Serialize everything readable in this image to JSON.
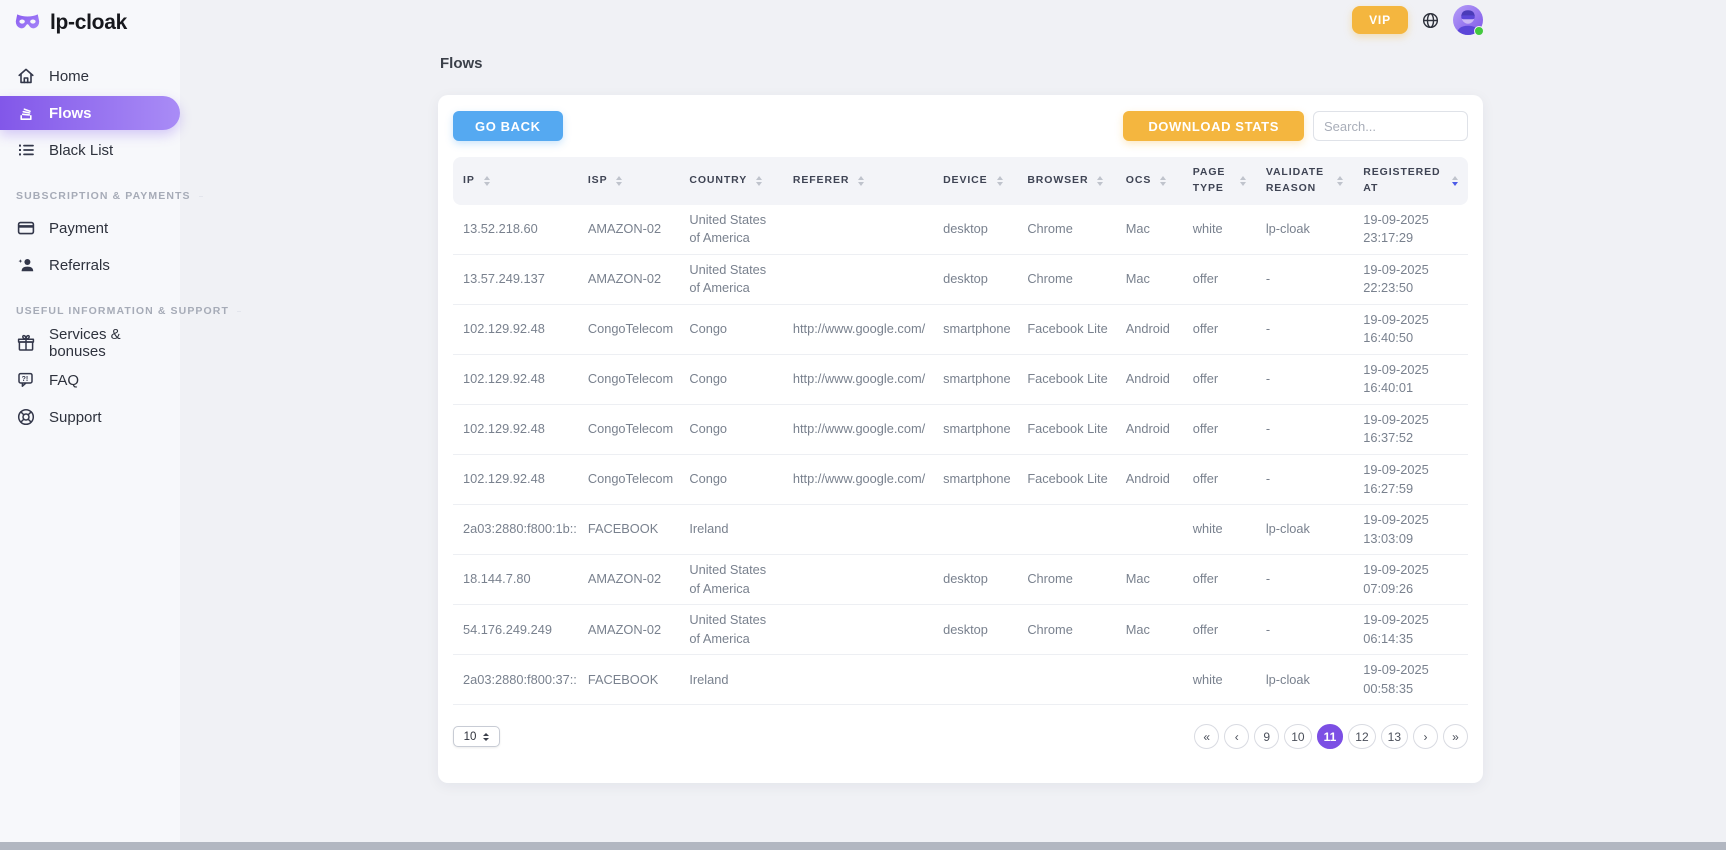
{
  "brand": {
    "name": "lp-cloak"
  },
  "topbar": {
    "vip_label": "VIP"
  },
  "sidebar": {
    "sections": [
      {
        "header": "",
        "items": [
          {
            "label": "Home",
            "icon": "home-icon",
            "active": false
          },
          {
            "label": "Flows",
            "icon": "flows-stack-icon",
            "active": true
          },
          {
            "label": "Black List",
            "icon": "list-icon",
            "active": false
          }
        ]
      },
      {
        "header": "SUBSCRIPTION & PAYMENTS",
        "items": [
          {
            "label": "Payment",
            "icon": "credit-card-icon",
            "active": false
          },
          {
            "label": "Referrals",
            "icon": "person-star-icon",
            "active": false
          }
        ]
      },
      {
        "header": "USEFUL INFORMATION & SUPPORT",
        "items": [
          {
            "label": "Services & bonuses",
            "icon": "gift-icon",
            "active": false
          },
          {
            "label": "FAQ",
            "icon": "faq-bubble-icon",
            "active": false
          },
          {
            "label": "Support",
            "icon": "lifering-icon",
            "active": false
          }
        ]
      }
    ]
  },
  "main": {
    "title": "Flows",
    "go_back_label": "GO BACK",
    "download_stats_label": "DOWNLOAD STATS",
    "search_placeholder": "Search..."
  },
  "table": {
    "columns": [
      {
        "label": "IP"
      },
      {
        "label": "ISP"
      },
      {
        "label": "COUNTRY"
      },
      {
        "label": "REFERER"
      },
      {
        "label": "DEVICE"
      },
      {
        "label": "BROWSER"
      },
      {
        "label": "OCS"
      },
      {
        "label": "PAGE TYPE"
      },
      {
        "label": "VALIDATE REASON"
      },
      {
        "label": "REGISTERED AT",
        "sorted": "desc"
      }
    ],
    "rows": [
      [
        "13.52.218.60",
        "AMAZON-02",
        "United States of America",
        "",
        "desktop",
        "Chrome",
        "Mac",
        "white",
        "lp-cloak",
        "19-09-2025 23:17:29"
      ],
      [
        "13.57.249.137",
        "AMAZON-02",
        "United States of America",
        "",
        "desktop",
        "Chrome",
        "Mac",
        "offer",
        "-",
        "19-09-2025 22:23:50"
      ],
      [
        "102.129.92.48",
        "CongoTelecom",
        "Congo",
        "http://www.google.com/",
        "smartphone",
        "Facebook Lite",
        "Android",
        "offer",
        "-",
        "19-09-2025 16:40:50"
      ],
      [
        "102.129.92.48",
        "CongoTelecom",
        "Congo",
        "http://www.google.com/",
        "smartphone",
        "Facebook Lite",
        "Android",
        "offer",
        "-",
        "19-09-2025 16:40:01"
      ],
      [
        "102.129.92.48",
        "CongoTelecom",
        "Congo",
        "http://www.google.com/",
        "smartphone",
        "Facebook Lite",
        "Android",
        "offer",
        "-",
        "19-09-2025 16:37:52"
      ],
      [
        "102.129.92.48",
        "CongoTelecom",
        "Congo",
        "http://www.google.com/",
        "smartphone",
        "Facebook Lite",
        "Android",
        "offer",
        "-",
        "19-09-2025 16:27:59"
      ],
      [
        "2a03:2880:f800:1b::",
        "FACEBOOK",
        "Ireland",
        "",
        "",
        "",
        "",
        "white",
        "lp-cloak",
        "19-09-2025 13:03:09"
      ],
      [
        "18.144.7.80",
        "AMAZON-02",
        "United States of America",
        "",
        "desktop",
        "Chrome",
        "Mac",
        "offer",
        "-",
        "19-09-2025 07:09:26"
      ],
      [
        "54.176.249.249",
        "AMAZON-02",
        "United States of America",
        "",
        "desktop",
        "Chrome",
        "Mac",
        "offer",
        "-",
        "19-09-2025 06:14:35"
      ],
      [
        "2a03:2880:f800:37::",
        "FACEBOOK",
        "Ireland",
        "",
        "",
        "",
        "",
        "white",
        "lp-cloak",
        "19-09-2025 00:58:35"
      ]
    ]
  },
  "pagination": {
    "page_size": "10",
    "active_page": "11",
    "pages": [
      {
        "label": "«",
        "name": "first",
        "active": false
      },
      {
        "label": "‹",
        "name": "prev",
        "active": false
      },
      {
        "label": "9",
        "name": "page-9",
        "active": false
      },
      {
        "label": "10",
        "name": "page-10",
        "active": false
      },
      {
        "label": "11",
        "name": "page-11",
        "active": true
      },
      {
        "label": "12",
        "name": "page-12",
        "active": false
      },
      {
        "label": "13",
        "name": "page-13",
        "active": false
      },
      {
        "label": "›",
        "name": "next",
        "active": false
      },
      {
        "label": "»",
        "name": "last",
        "active": false
      }
    ]
  },
  "colors": {
    "page_background": "#f0f1f5",
    "sidebar_background": "#f7f8fb",
    "active_nav_gradient": [
      "#8257e9",
      "#a98cf6"
    ],
    "blue_button": "#55a9f1",
    "amber_button": "#f4b63f",
    "active_page_purple": "#7c4fe4",
    "active_sort_arrow": "#4c5be8",
    "online_dot_green": "#43c93e"
  }
}
